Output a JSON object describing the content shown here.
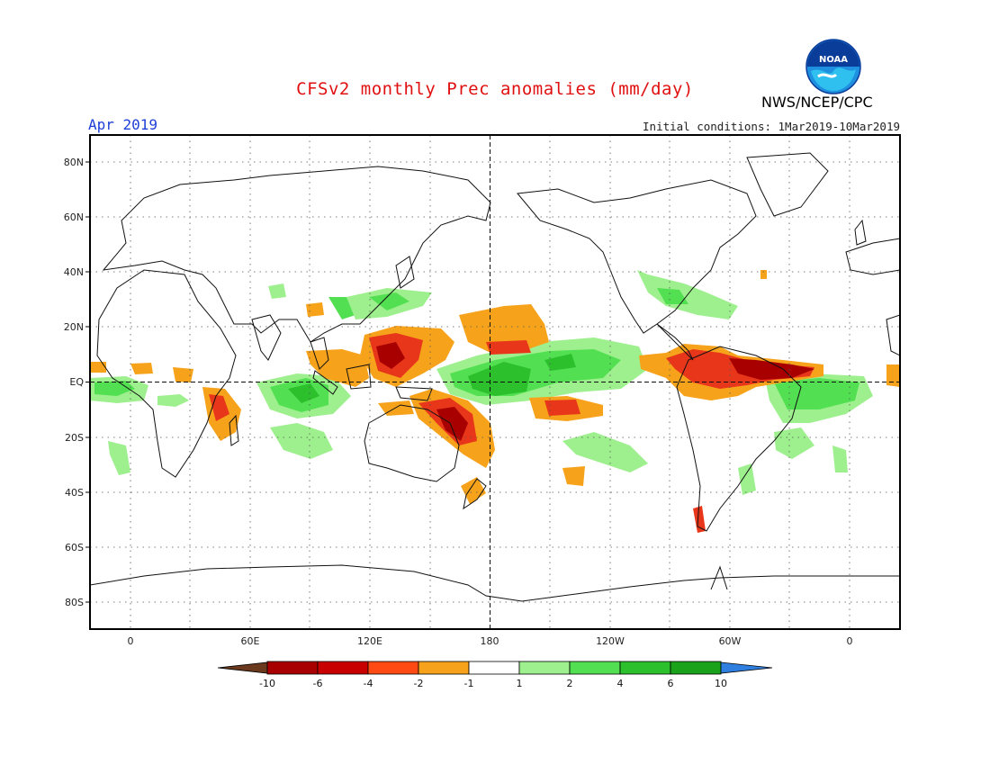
{
  "header": {
    "title": "CFSv2 monthly Prec anomalies (mm/day)",
    "agency": "NWS/NCEP/CPC",
    "logo_text": "NOAA",
    "month": "Apr 2019",
    "initial_conditions": "Initial conditions: 1Mar2019-10Mar2019"
  },
  "map": {
    "projection": "cylindrical equidistant",
    "lon_center": 180,
    "lat_labels": [
      "80N",
      "60N",
      "40N",
      "20N",
      "EQ",
      "20S",
      "40S",
      "60S",
      "80S"
    ],
    "lon_labels": [
      "0",
      "60E",
      "120E",
      "180",
      "120W",
      "60W",
      "0"
    ]
  },
  "colorbar": {
    "labels": [
      "-10",
      "-6",
      "-4",
      "-2",
      "-1",
      "1",
      "2",
      "4",
      "6",
      "10"
    ],
    "colors": [
      "#6b3a1e",
      "#a80000",
      "#c80000",
      "#ff4a14",
      "#f7a21b",
      "#ffffff",
      "#9ef08e",
      "#52e052",
      "#2cc02c",
      "#1aa31a",
      "#2e7fe0"
    ]
  },
  "anomaly_colors": {
    "dry_extreme": "#a80000",
    "dry_strong": "#e8361a",
    "dry_moderate": "#ff7a1a",
    "dry_weak": "#f7a21b",
    "wet_weak": "#9ef08e",
    "wet_moderate": "#52e052",
    "wet_strong": "#2cc02c"
  }
}
